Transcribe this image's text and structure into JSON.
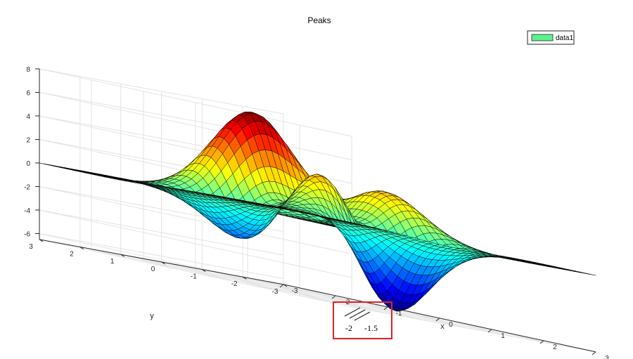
{
  "chart_data": {
    "type": "surface",
    "title": "Peaks",
    "function": "peaks",
    "xlabel": "x",
    "ylabel": "y",
    "zlabel": "",
    "xlim": [
      -3,
      3
    ],
    "ylim": [
      -3,
      3
    ],
    "zlim": [
      -6.5,
      8
    ],
    "xticks": [
      -3,
      -2,
      -1,
      0,
      1,
      2,
      3
    ],
    "yticks": [
      -3,
      -2,
      -1,
      0,
      1,
      2,
      3
    ],
    "zticks": [
      -6,
      -4,
      -2,
      0,
      2,
      4,
      6,
      8
    ],
    "xtick_labels": [
      "-3",
      "-2",
      "-1",
      "0",
      "1",
      "2",
      "3"
    ],
    "ytick_labels": [
      "-3",
      "-2",
      "-1",
      "0",
      "1",
      "2",
      "3"
    ],
    "ztick_labels": [
      "-6",
      "-4",
      "-2",
      "0",
      "2",
      "4",
      "6",
      "8"
    ],
    "grid_resolution": 49,
    "colormap": "jet",
    "grid": true,
    "legend": {
      "entries": [
        "data1"
      ],
      "placement": "top-right",
      "swatch_color": "#59f28c"
    },
    "series": [
      {
        "name": "data1"
      }
    ],
    "annotation": {
      "labels": [
        "-2",
        "-1.5"
      ],
      "border_color": "#e0202a",
      "description_visible": "axis break marker"
    }
  }
}
